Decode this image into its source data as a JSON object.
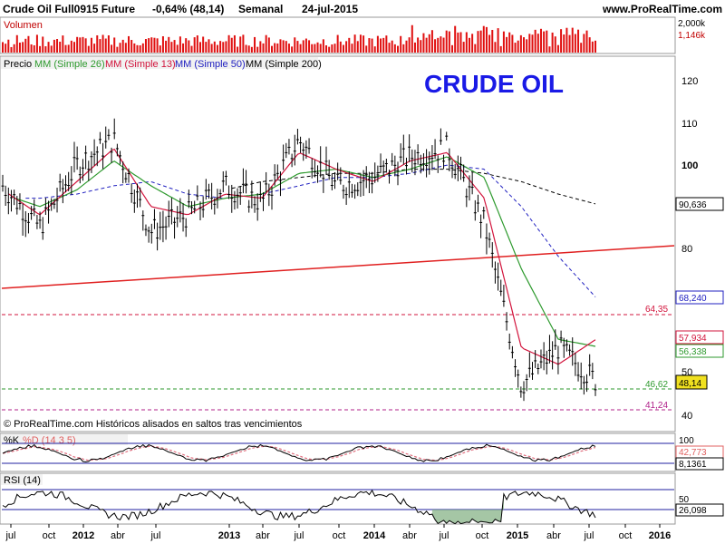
{
  "header": {
    "instrument": "Crude Oil Full0915 Future",
    "change": "-0,64% (48,14)",
    "period": "Semanal",
    "date": "24-jul-2015",
    "site": "www.ProRealTime.com"
  },
  "colors": {
    "price": "#000000",
    "ma26": "#2e9a2e",
    "ma13": "#d2143c",
    "ma50": "#2020c0",
    "ma200": "#000000",
    "trendline": "#e02020",
    "last_price_bg": "#f0e020"
  },
  "volume_panel": {
    "label": "Volumen",
    "axis_labels": [
      "2,000k",
      "1,146k"
    ]
  },
  "price_panel": {
    "legend": {
      "price": "Precio",
      "ma26": "MM (Simple 26)",
      "ma13": "MM (Simple 13)",
      "ma50": "MM (Simple 50)",
      "ma200": "MM (Simple 200)"
    },
    "title": "CRUDE OIL",
    "footer": "© ProRealTime.com  Históricos alisados en saltos tras vencimientos",
    "ticks": [
      "120",
      "110",
      "100",
      "90,636",
      "80",
      "68,240",
      "57,934",
      "56,338",
      "50",
      "48,14",
      "40"
    ],
    "levels": [
      {
        "value": "64,35",
        "color": "#d2143c"
      },
      {
        "value": "46,62",
        "color": "#2e9a2e"
      },
      {
        "value": "41,24",
        "color": "#b0208a"
      }
    ]
  },
  "stoch_panel": {
    "label_k": "%K",
    "label_d": "%D (14 3 5)",
    "values": [
      "42,773",
      "8,1361"
    ]
  },
  "rsi_panel": {
    "label": "RSI (14)",
    "values": [
      "50",
      "26,098"
    ]
  },
  "x_axis": [
    "jul",
    "oct",
    "2012",
    "abr",
    "jul",
    "2013",
    "abr",
    "jul",
    "oct",
    "2014",
    "abr",
    "jul",
    "oct",
    "2015",
    "abr",
    "jul",
    "oct",
    "2016"
  ],
  "chart_data": {
    "type": "line",
    "title": "CRUDE OIL",
    "x_range": [
      "2011-07",
      "2016-01"
    ],
    "ylim": [
      37,
      127
    ],
    "x": [
      "2011-07",
      "2011-10",
      "2012-01",
      "2012-04",
      "2012-07",
      "2012-10",
      "2013-01",
      "2013-04",
      "2013-07",
      "2013-10",
      "2014-01",
      "2014-04",
      "2014-07",
      "2014-10",
      "2015-01",
      "2015-04",
      "2015-07"
    ],
    "series": [
      {
        "name": "Precio",
        "values": [
          95,
          85,
          100,
          106,
          84,
          88,
          95,
          91,
          106,
          95,
          97,
          102,
          104,
          86,
          47,
          56,
          48.14
        ]
      },
      {
        "name": "MM (Simple 13)",
        "values": [
          94,
          88,
          96,
          104,
          90,
          88,
          93,
          92,
          103,
          99,
          96,
          101,
          103,
          92,
          56,
          52,
          57.93
        ]
      },
      {
        "name": "MM (Simple 26)",
        "values": [
          93,
          90,
          94,
          101,
          95,
          90,
          92,
          93,
          98,
          99,
          97,
          99,
          102,
          97,
          75,
          58,
          56.34
        ]
      },
      {
        "name": "MM (Simple 50)",
        "values": [
          92,
          92,
          93,
          95,
          96,
          93,
          92,
          93,
          95,
          97,
          97,
          98,
          100,
          99,
          90,
          78,
          68.24
        ]
      },
      {
        "name": "MM (Simple 200)",
        "values": [
          null,
          null,
          null,
          null,
          null,
          null,
          94,
          96,
          97,
          98,
          98,
          99,
          99,
          98,
          96,
          93,
          90.64
        ]
      }
    ],
    "annotations": [
      "64,35",
      "46,62",
      "41,24"
    ]
  }
}
